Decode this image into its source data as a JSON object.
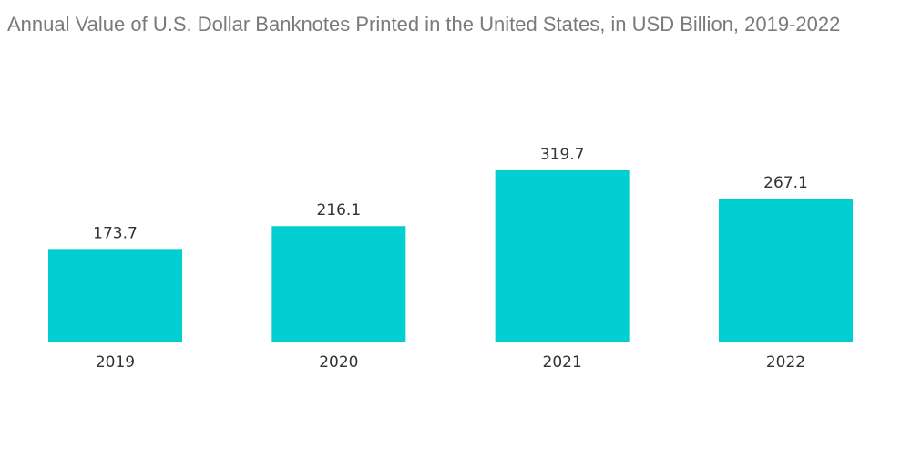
{
  "chart_data": {
    "type": "bar",
    "title": "Annual Value of U.S. Dollar Banknotes Printed in the United States, in USD Billion, 2019-2022",
    "categories": [
      "2019",
      "2020",
      "2021",
      "2022"
    ],
    "values": [
      173.7,
      216.1,
      319.7,
      267.1
    ],
    "value_labels": [
      "173.7",
      "216.1",
      "319.7",
      "267.1"
    ],
    "xlabel": "",
    "ylabel": "",
    "ylim": [
      0,
      319.7
    ],
    "grid": false,
    "legend": "none",
    "bar_color": "#00ced1"
  }
}
